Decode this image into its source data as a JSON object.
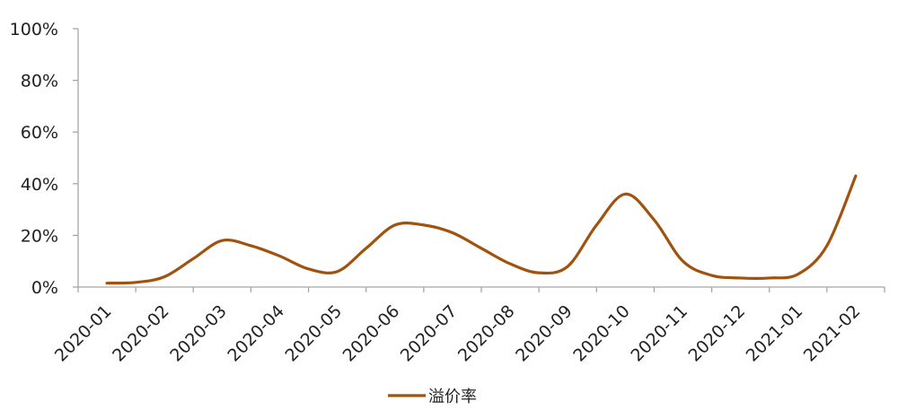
{
  "chart_data": {
    "type": "line",
    "title": "",
    "xlabel": "",
    "ylabel": "",
    "categories": [
      "2020-01",
      "2020-02",
      "2020-03",
      "2020-04",
      "2020-05",
      "2020-06",
      "2020-07",
      "2020-08",
      "2020-09",
      "2020-10",
      "2020-11",
      "2020-12",
      "2021-01",
      "2021-02"
    ],
    "ylim": [
      0,
      100
    ],
    "yticks": [
      0,
      20,
      40,
      60,
      80,
      100
    ],
    "ytick_labels": [
      "0%",
      "20%",
      "40%",
      "60%",
      "80%",
      "100%"
    ],
    "grid": false,
    "legend_position": "bottom-center",
    "series": [
      {
        "name": "溢价率",
        "color": "#a0520f",
        "x": [
          0,
          0.5,
          1.0,
          1.5,
          2.0,
          2.5,
          3.0,
          3.5,
          4.0,
          4.5,
          5.0,
          5.5,
          6.0,
          6.5,
          7.0,
          7.5,
          8.0,
          8.5,
          9.0,
          9.5,
          10.0,
          10.5,
          11.0,
          11.5,
          12.0,
          12.5,
          13.0
        ],
        "values": [
          1.5,
          1.8,
          4.0,
          11.0,
          18.0,
          16.0,
          12.0,
          7.0,
          6.0,
          15.0,
          24.0,
          24.0,
          21.0,
          15.0,
          9.0,
          5.5,
          8.0,
          24.0,
          36.0,
          26.0,
          10.0,
          4.5,
          3.5,
          3.5,
          5.0,
          16.0,
          43.0
        ]
      }
    ]
  }
}
